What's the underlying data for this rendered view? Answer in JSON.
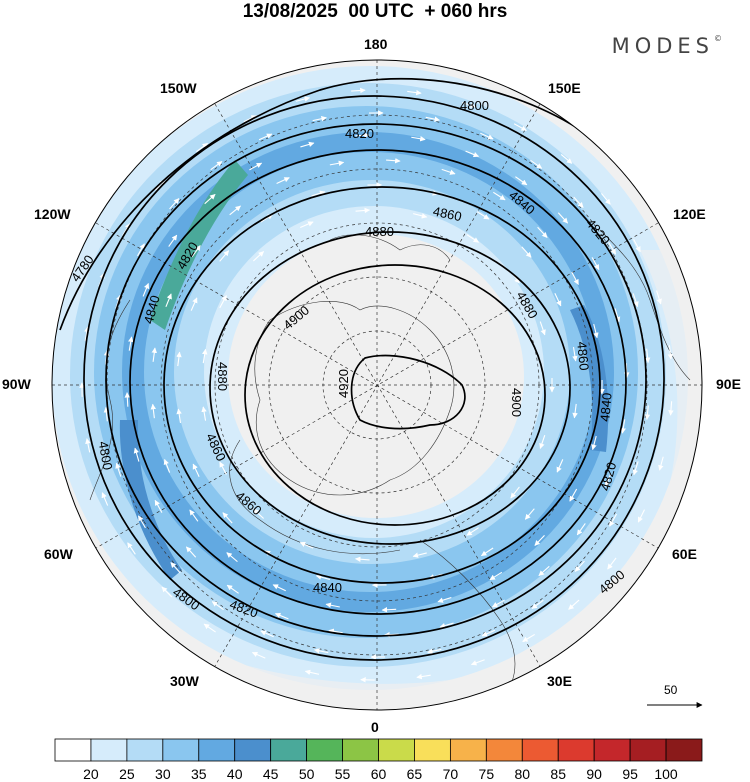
{
  "header": {
    "title": "13/08/2025  00 UTC  + 060 hrs",
    "brand": "MODES",
    "brand_mark": "©"
  },
  "map": {
    "projection": "north-polar-stereographic",
    "field": "500 hPa geopotential height (dam) with wind speed shading and wind vectors",
    "longitude_labels": {
      "top": "180",
      "bottom": "0",
      "left": "90W",
      "right": "90E",
      "upper_left_30": "150W",
      "upper_left_60": "120W",
      "upper_right_30": "150E",
      "upper_right_60": "120E",
      "lower_left_60": "60W",
      "lower_left_30": "30W",
      "lower_right_60": "60E",
      "lower_right_30": "30E"
    },
    "contour_labels": [
      "4780",
      "4800",
      "4820",
      "4840",
      "4860",
      "4880",
      "4900",
      "4920"
    ],
    "reference_vector": {
      "value": "50"
    },
    "colors": {
      "land_gray": "#f0f0f0",
      "contour": "#000000",
      "vector": "#ffffff"
    }
  },
  "colorbar": {
    "labels": [
      "20",
      "25",
      "30",
      "35",
      "40",
      "45",
      "50",
      "55",
      "60",
      "65",
      "70",
      "75",
      "80",
      "85",
      "90",
      "95",
      "100"
    ],
    "colors": [
      "#ffffff",
      "#d6ecfb",
      "#b4dcf6",
      "#8ac6ef",
      "#62a9e1",
      "#4b8fcd",
      "#4aa99a",
      "#55b55a",
      "#8cc545",
      "#cadb4a",
      "#f9df5a",
      "#f7b24a",
      "#f3873a",
      "#ec5a32",
      "#dc3a2e",
      "#c4272b",
      "#a51e22",
      "#8a1a1a"
    ]
  }
}
